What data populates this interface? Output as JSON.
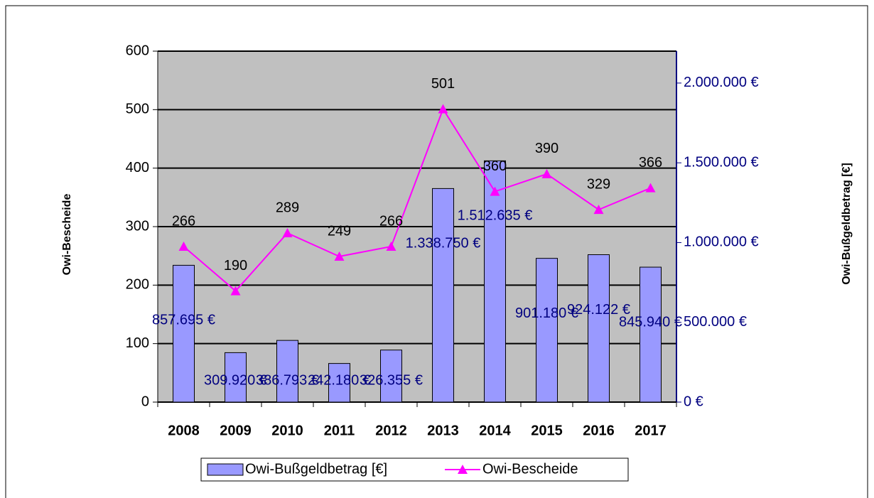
{
  "chart_data": {
    "type": "bar",
    "categories": [
      "2008",
      "2009",
      "2010",
      "2011",
      "2012",
      "2013",
      "2014",
      "2015",
      "2016",
      "2017"
    ],
    "ylabel": "Owi-Bescheide",
    "y2label": "Owi-Bußgeldbetrag [€]",
    "ylim": [
      0,
      600
    ],
    "yticks": [
      0,
      100,
      200,
      300,
      400,
      500,
      600
    ],
    "y2lim": [
      0,
      2200000
    ],
    "y2ticks": [
      {
        "value": 0,
        "label": "0 €"
      },
      {
        "value": 500000,
        "label": "500.000 €"
      },
      {
        "value": 1000000,
        "label": "1.000.000 €"
      },
      {
        "value": 1500000,
        "label": "1.500.000 €"
      },
      {
        "value": 2000000,
        "label": "2.000.000 €"
      }
    ],
    "grid": true,
    "legend": "bottom",
    "series": [
      {
        "name": "Owi-Bußgeldbetrag [€]",
        "type": "bar",
        "axis": "y2",
        "color": "#9999ff",
        "values": [
          857695,
          309920,
          386793,
          242180,
          326355,
          1338750,
          1512635,
          901180,
          924122,
          845940
        ],
        "value_labels": [
          "857.695 €",
          "309.920 €",
          "386.793 €",
          "242.180 €",
          "326.355 €",
          "1.338.750 €",
          "1.512.635 €",
          "901.180 €",
          "924.122 €",
          "845.940 €"
        ]
      },
      {
        "name": "Owi-Bescheide",
        "type": "line",
        "axis": "y",
        "color": "#ff00ff",
        "values": [
          266,
          190,
          289,
          249,
          266,
          501,
          360,
          390,
          329,
          366
        ]
      }
    ]
  }
}
